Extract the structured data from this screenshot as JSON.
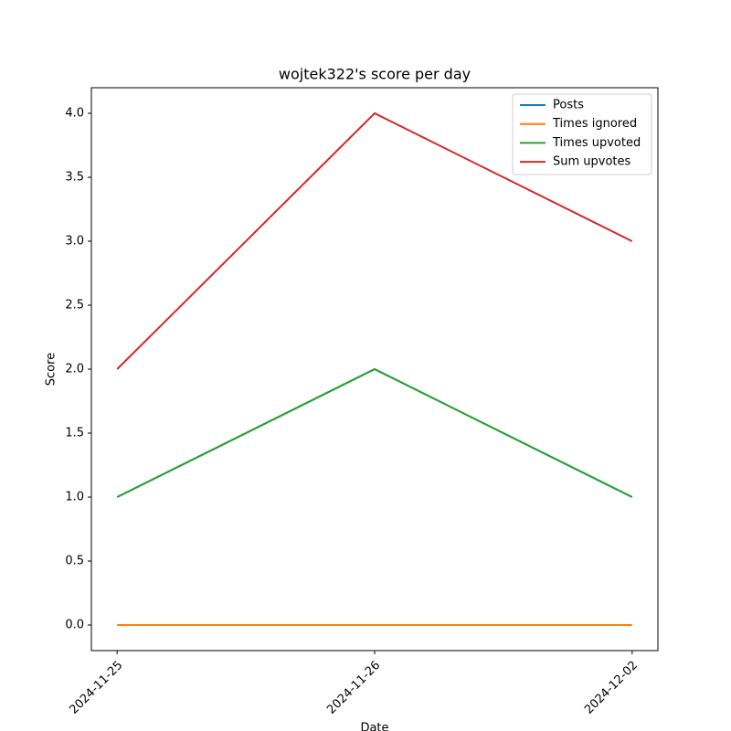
{
  "chart_data": {
    "type": "line",
    "title": "wojtek322's score per day",
    "xlabel": "Date",
    "ylabel": "Score",
    "categories": [
      "2024-11-25",
      "2024-11-26",
      "2024-12-02"
    ],
    "series": [
      {
        "name": "Posts",
        "color": "#1f77b4",
        "values": [
          1,
          2,
          1
        ]
      },
      {
        "name": "Times ignored",
        "color": "#ff7f0e",
        "values": [
          0,
          0,
          0
        ]
      },
      {
        "name": "Times upvoted",
        "color": "#2ca02c",
        "values": [
          1,
          2,
          1
        ]
      },
      {
        "name": "Sum upvotes",
        "color": "#d62728",
        "values": [
          2,
          4,
          3
        ]
      }
    ],
    "ylim": [
      -0.2,
      4.2
    ],
    "yticks": [
      {
        "value": 0,
        "label": "0.0"
      },
      {
        "value": 0.5,
        "label": "0.5"
      },
      {
        "value": 1,
        "label": "1.0"
      },
      {
        "value": 1.5,
        "label": "1.5"
      },
      {
        "value": 2,
        "label": "2.0"
      },
      {
        "value": 2.5,
        "label": "2.5"
      },
      {
        "value": 3,
        "label": "3.0"
      },
      {
        "value": 3.5,
        "label": "3.5"
      },
      {
        "value": 4,
        "label": "4.0"
      }
    ],
    "legend": "upper right",
    "grid": false
  }
}
